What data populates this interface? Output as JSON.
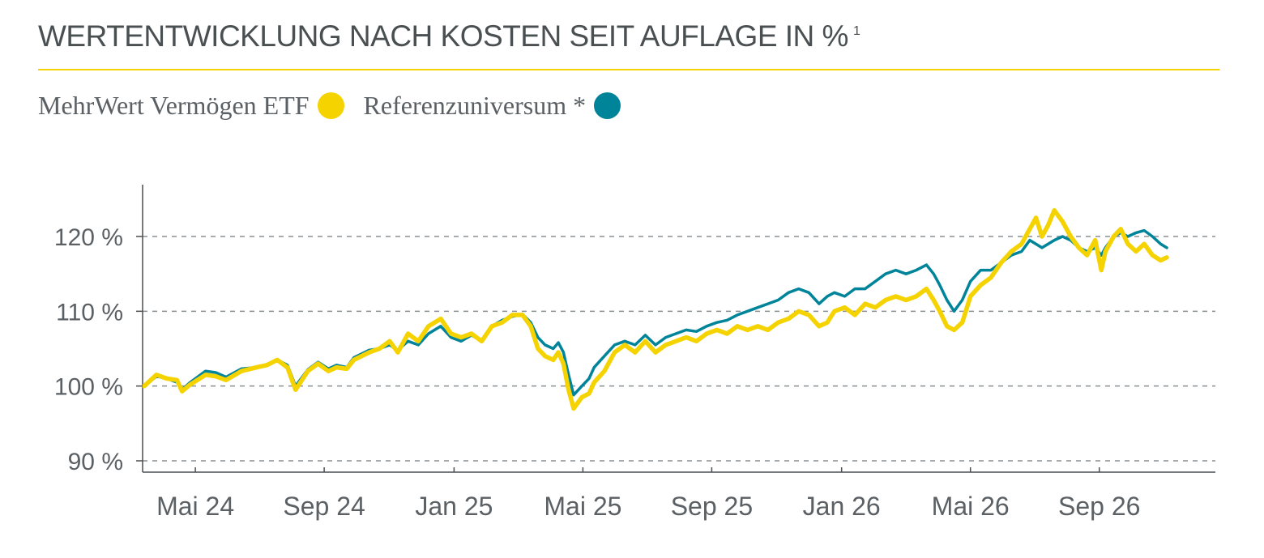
{
  "header": {
    "title": "WERTENTWICKLUNG NACH KOSTEN SEIT AUFLAGE IN %",
    "footnote_marker": "1"
  },
  "legend": [
    {
      "label": "MehrWert Vermögen ETF",
      "color": "#f5d300"
    },
    {
      "label": "Referenzuniversum *",
      "color": "#00849a"
    }
  ],
  "chart_data": {
    "type": "line",
    "xlabel": "",
    "ylabel": "",
    "ylim": [
      89,
      127
    ],
    "xlim": [
      0,
      1.0
    ],
    "grid": "horizontal dashed",
    "y_ticks": [
      {
        "value": 90,
        "label": "90 %"
      },
      {
        "value": 100,
        "label": "100 %"
      },
      {
        "value": 110,
        "label": "110 %"
      },
      {
        "value": 120,
        "label": "120 %"
      }
    ],
    "x_ticks": [
      {
        "value": 0.05,
        "label": "Mai 24"
      },
      {
        "value": 0.176,
        "label": "Sep 24"
      },
      {
        "value": 0.303,
        "label": "Jan 25"
      },
      {
        "value": 0.429,
        "label": "Mai 25"
      },
      {
        "value": 0.555,
        "label": "Sep 25"
      },
      {
        "value": 0.682,
        "label": "Jan 26"
      },
      {
        "value": 0.808,
        "label": "Mai 26"
      },
      {
        "value": 0.934,
        "label": "Sep 26"
      }
    ],
    "series": [
      {
        "name": "MehrWert Vermögen ETF",
        "color": "#f5d300",
        "points": [
          [
            0.0,
            100.0
          ],
          [
            0.012,
            101.5
          ],
          [
            0.022,
            101.0
          ],
          [
            0.032,
            100.8
          ],
          [
            0.037,
            99.3
          ],
          [
            0.045,
            100.2
          ],
          [
            0.06,
            101.5
          ],
          [
            0.07,
            101.3
          ],
          [
            0.08,
            100.8
          ],
          [
            0.095,
            102.0
          ],
          [
            0.11,
            102.5
          ],
          [
            0.12,
            102.8
          ],
          [
            0.13,
            103.5
          ],
          [
            0.14,
            102.5
          ],
          [
            0.148,
            99.5
          ],
          [
            0.16,
            102.0
          ],
          [
            0.17,
            103.0
          ],
          [
            0.18,
            102.0
          ],
          [
            0.188,
            102.5
          ],
          [
            0.198,
            102.3
          ],
          [
            0.205,
            103.5
          ],
          [
            0.22,
            104.5
          ],
          [
            0.23,
            105.0
          ],
          [
            0.24,
            106.0
          ],
          [
            0.248,
            104.5
          ],
          [
            0.258,
            107.0
          ],
          [
            0.268,
            106.0
          ],
          [
            0.278,
            108.0
          ],
          [
            0.29,
            109.0
          ],
          [
            0.3,
            107.0
          ],
          [
            0.31,
            106.5
          ],
          [
            0.32,
            107.0
          ],
          [
            0.33,
            106.0
          ],
          [
            0.34,
            108.0
          ],
          [
            0.35,
            108.5
          ],
          [
            0.36,
            109.5
          ],
          [
            0.37,
            109.5
          ],
          [
            0.378,
            108.0
          ],
          [
            0.385,
            105.0
          ],
          [
            0.392,
            104.0
          ],
          [
            0.4,
            103.5
          ],
          [
            0.405,
            104.5
          ],
          [
            0.41,
            103.0
          ],
          [
            0.415,
            99.5
          ],
          [
            0.42,
            97.0
          ],
          [
            0.428,
            98.5
          ],
          [
            0.435,
            99.0
          ],
          [
            0.44,
            100.5
          ],
          [
            0.45,
            102.0
          ],
          [
            0.46,
            104.5
          ],
          [
            0.47,
            105.5
          ],
          [
            0.48,
            104.5
          ],
          [
            0.49,
            106.0
          ],
          [
            0.5,
            104.5
          ],
          [
            0.51,
            105.5
          ],
          [
            0.52,
            106.0
          ],
          [
            0.53,
            106.5
          ],
          [
            0.54,
            106.0
          ],
          [
            0.55,
            107.0
          ],
          [
            0.56,
            107.5
          ],
          [
            0.57,
            107.0
          ],
          [
            0.58,
            108.0
          ],
          [
            0.59,
            107.5
          ],
          [
            0.6,
            108.0
          ],
          [
            0.61,
            107.5
          ],
          [
            0.62,
            108.5
          ],
          [
            0.63,
            109.0
          ],
          [
            0.64,
            110.0
          ],
          [
            0.65,
            109.5
          ],
          [
            0.66,
            108.0
          ],
          [
            0.668,
            108.5
          ],
          [
            0.675,
            110.0
          ],
          [
            0.685,
            110.5
          ],
          [
            0.695,
            109.5
          ],
          [
            0.705,
            111.0
          ],
          [
            0.715,
            110.5
          ],
          [
            0.725,
            111.5
          ],
          [
            0.735,
            112.0
          ],
          [
            0.745,
            111.5
          ],
          [
            0.755,
            112.0
          ],
          [
            0.765,
            113.0
          ],
          [
            0.772,
            111.5
          ],
          [
            0.778,
            110.0
          ],
          [
            0.785,
            108.0
          ],
          [
            0.792,
            107.5
          ],
          [
            0.8,
            108.5
          ],
          [
            0.808,
            112.0
          ],
          [
            0.818,
            113.5
          ],
          [
            0.828,
            114.5
          ],
          [
            0.838,
            116.5
          ],
          [
            0.848,
            118.0
          ],
          [
            0.858,
            119.0
          ],
          [
            0.866,
            121.0
          ],
          [
            0.872,
            122.5
          ],
          [
            0.878,
            120.0
          ],
          [
            0.884,
            121.5
          ],
          [
            0.89,
            123.5
          ],
          [
            0.898,
            122.0
          ],
          [
            0.906,
            120.0
          ],
          [
            0.914,
            118.5
          ],
          [
            0.922,
            117.5
          ],
          [
            0.93,
            119.5
          ],
          [
            0.936,
            115.5
          ],
          [
            0.94,
            118.0
          ],
          [
            0.948,
            120.0
          ],
          [
            0.955,
            121.0
          ],
          [
            0.962,
            119.0
          ],
          [
            0.97,
            118.0
          ],
          [
            0.978,
            119.0
          ],
          [
            0.986,
            117.5
          ],
          [
            0.994,
            116.8
          ],
          [
            1.0,
            117.2
          ]
        ]
      },
      {
        "name": "Referenzuniversum *",
        "color": "#00849a",
        "points": [
          [
            0.0,
            100.0
          ],
          [
            0.012,
            101.3
          ],
          [
            0.022,
            101.0
          ],
          [
            0.032,
            100.5
          ],
          [
            0.037,
            99.5
          ],
          [
            0.045,
            100.5
          ],
          [
            0.06,
            102.0
          ],
          [
            0.07,
            101.8
          ],
          [
            0.08,
            101.2
          ],
          [
            0.095,
            102.3
          ],
          [
            0.11,
            102.5
          ],
          [
            0.12,
            102.9
          ],
          [
            0.13,
            103.5
          ],
          [
            0.14,
            102.8
          ],
          [
            0.148,
            100.0
          ],
          [
            0.16,
            102.2
          ],
          [
            0.17,
            103.2
          ],
          [
            0.18,
            102.3
          ],
          [
            0.188,
            102.8
          ],
          [
            0.198,
            102.5
          ],
          [
            0.205,
            103.8
          ],
          [
            0.22,
            104.8
          ],
          [
            0.23,
            105.0
          ],
          [
            0.24,
            105.5
          ],
          [
            0.248,
            104.8
          ],
          [
            0.258,
            106.0
          ],
          [
            0.268,
            105.5
          ],
          [
            0.278,
            107.0
          ],
          [
            0.29,
            108.0
          ],
          [
            0.3,
            106.5
          ],
          [
            0.31,
            106.0
          ],
          [
            0.32,
            106.8
          ],
          [
            0.33,
            106.0
          ],
          [
            0.34,
            108.0
          ],
          [
            0.35,
            108.8
          ],
          [
            0.36,
            109.3
          ],
          [
            0.37,
            109.6
          ],
          [
            0.378,
            108.5
          ],
          [
            0.385,
            106.5
          ],
          [
            0.392,
            105.5
          ],
          [
            0.4,
            105.0
          ],
          [
            0.405,
            105.8
          ],
          [
            0.41,
            104.5
          ],
          [
            0.415,
            101.5
          ],
          [
            0.42,
            98.8
          ],
          [
            0.428,
            100.0
          ],
          [
            0.435,
            101.0
          ],
          [
            0.44,
            102.5
          ],
          [
            0.45,
            104.0
          ],
          [
            0.46,
            105.5
          ],
          [
            0.47,
            106.0
          ],
          [
            0.48,
            105.5
          ],
          [
            0.49,
            106.8
          ],
          [
            0.5,
            105.5
          ],
          [
            0.51,
            106.5
          ],
          [
            0.52,
            107.0
          ],
          [
            0.53,
            107.5
          ],
          [
            0.54,
            107.3
          ],
          [
            0.55,
            108.0
          ],
          [
            0.56,
            108.5
          ],
          [
            0.57,
            108.8
          ],
          [
            0.58,
            109.5
          ],
          [
            0.59,
            110.0
          ],
          [
            0.6,
            110.5
          ],
          [
            0.61,
            111.0
          ],
          [
            0.62,
            111.5
          ],
          [
            0.63,
            112.5
          ],
          [
            0.64,
            113.0
          ],
          [
            0.65,
            112.5
          ],
          [
            0.66,
            111.0
          ],
          [
            0.668,
            112.0
          ],
          [
            0.675,
            112.5
          ],
          [
            0.685,
            112.0
          ],
          [
            0.695,
            113.0
          ],
          [
            0.705,
            113.0
          ],
          [
            0.715,
            114.0
          ],
          [
            0.725,
            115.0
          ],
          [
            0.735,
            115.5
          ],
          [
            0.745,
            115.0
          ],
          [
            0.755,
            115.5
          ],
          [
            0.765,
            116.2
          ],
          [
            0.772,
            115.0
          ],
          [
            0.778,
            113.5
          ],
          [
            0.785,
            111.5
          ],
          [
            0.792,
            110.0
          ],
          [
            0.8,
            111.5
          ],
          [
            0.808,
            114.0
          ],
          [
            0.818,
            115.5
          ],
          [
            0.828,
            115.5
          ],
          [
            0.838,
            116.5
          ],
          [
            0.848,
            117.5
          ],
          [
            0.858,
            118.0
          ],
          [
            0.866,
            119.5
          ],
          [
            0.872,
            119.0
          ],
          [
            0.878,
            118.5
          ],
          [
            0.884,
            119.0
          ],
          [
            0.89,
            119.5
          ],
          [
            0.898,
            120.0
          ],
          [
            0.906,
            119.5
          ],
          [
            0.914,
            118.5
          ],
          [
            0.922,
            118.0
          ],
          [
            0.93,
            118.5
          ],
          [
            0.936,
            117.5
          ],
          [
            0.94,
            118.5
          ],
          [
            0.948,
            120.0
          ],
          [
            0.955,
            120.5
          ],
          [
            0.962,
            120.0
          ],
          [
            0.97,
            120.5
          ],
          [
            0.978,
            120.8
          ],
          [
            0.986,
            120.0
          ],
          [
            0.994,
            119.0
          ],
          [
            1.0,
            118.5
          ]
        ]
      }
    ]
  }
}
